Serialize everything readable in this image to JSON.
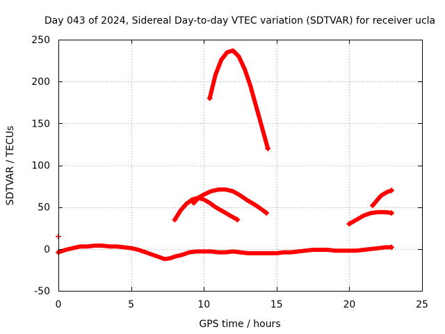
{
  "chart_data": {
    "type": "line",
    "title": "Day 043 of 2024, Sidereal Day-to-day VTEC variation (SDTVAR) for receiver ucla",
    "xlabel": "GPS time / hours",
    "ylabel": "SDTVAR / TECUs",
    "xlim": [
      0,
      25
    ],
    "ylim": [
      -50,
      250
    ],
    "xticks": [
      0,
      5,
      10,
      15,
      20,
      25
    ],
    "yticks": [
      -50,
      0,
      50,
      100,
      150,
      200,
      250
    ],
    "grid": true,
    "legend": "none",
    "color": "#ff0000",
    "marker": "plus",
    "series": [
      {
        "name": "baseline",
        "x": [
          0.0,
          0.5,
          1.0,
          1.5,
          2.0,
          2.5,
          3.0,
          3.5,
          4.0,
          4.5,
          5.0,
          5.5,
          6.0,
          6.5,
          7.0,
          7.3,
          7.7,
          8.0,
          8.5,
          9.0,
          9.5,
          10.0,
          10.5,
          11.0,
          11.5,
          12.0,
          12.5,
          13.0,
          13.5,
          14.0,
          14.5,
          15.0,
          15.5,
          16.0,
          16.5,
          17.0,
          17.5,
          18.0,
          18.5,
          19.0,
          19.5,
          20.0,
          20.5,
          21.0,
          21.5,
          22.0,
          22.5,
          22.9
        ],
        "y": [
          -4,
          -1,
          1,
          3,
          3,
          4,
          4,
          3,
          3,
          2,
          1,
          -1,
          -4,
          -7,
          -10,
          -12,
          -11,
          -9,
          -7,
          -4,
          -3,
          -3,
          -3,
          -4,
          -4,
          -3,
          -4,
          -5,
          -5,
          -5,
          -5,
          -5,
          -4,
          -4,
          -3,
          -2,
          -1,
          -1,
          -1,
          -2,
          -2,
          -2,
          -2,
          -1,
          0,
          1,
          2,
          2
        ]
      },
      {
        "name": "arc-peak-237",
        "x": [
          10.4,
          10.8,
          11.2,
          11.6,
          12.0,
          12.4,
          12.8,
          13.2,
          13.6,
          14.0,
          14.4
        ],
        "y": [
          180,
          208,
          226,
          235,
          237,
          230,
          215,
          195,
          170,
          145,
          120
        ]
      },
      {
        "name": "arc-peak-71",
        "x": [
          9.3,
          9.7,
          10.0,
          10.5,
          11.0,
          11.5,
          12.0,
          12.5,
          13.0,
          13.5,
          14.0,
          14.3
        ],
        "y": [
          55,
          62,
          65,
          69,
          71,
          71,
          69,
          64,
          58,
          53,
          47,
          43
        ]
      },
      {
        "name": "arc-peak-61",
        "x": [
          8.0,
          8.4,
          8.8,
          9.2,
          9.6,
          10.0,
          10.4,
          10.8,
          11.2,
          11.6,
          12.0,
          12.3
        ],
        "y": [
          35,
          46,
          54,
          59,
          61,
          59,
          55,
          50,
          46,
          42,
          38,
          35
        ]
      },
      {
        "name": "arc-late-44",
        "x": [
          20.0,
          20.5,
          21.0,
          21.5,
          22.0,
          22.5,
          22.9
        ],
        "y": [
          30,
          35,
          40,
          43,
          44,
          44,
          43
        ]
      },
      {
        "name": "arc-late-70",
        "x": [
          21.6,
          21.8,
          22.0,
          22.2,
          22.4,
          22.6,
          22.9
        ],
        "y": [
          52,
          56,
          60,
          64,
          66,
          68,
          70
        ]
      },
      {
        "name": "isolated-point",
        "x": [
          0.0
        ],
        "y": [
          15
        ]
      }
    ]
  }
}
